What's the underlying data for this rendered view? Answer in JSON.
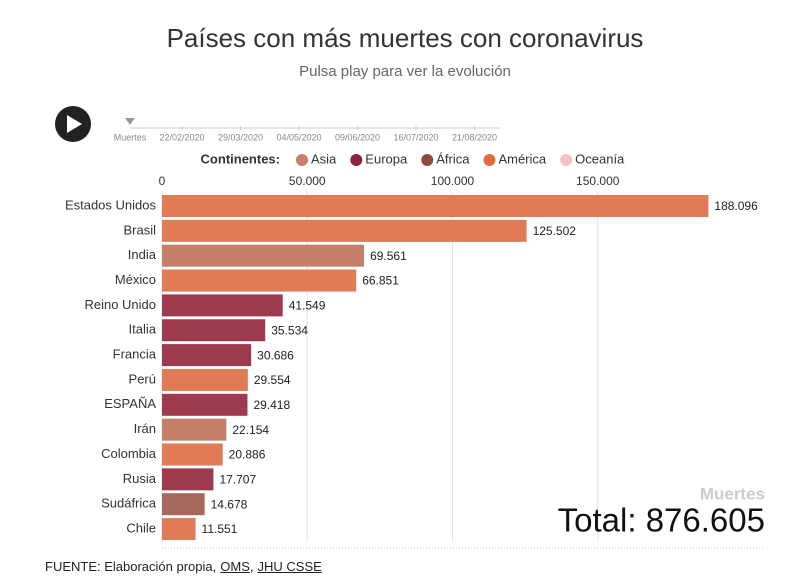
{
  "chart_data": {
    "type": "bar",
    "orientation": "horizontal",
    "title": "Países con más muertes con coronavirus",
    "subtitle": "Pulsa play para ver la evolución",
    "categories": [
      "Estados Unidos",
      "Brasil",
      "India",
      "México",
      "Reino Unido",
      "Italia",
      "Francia",
      "Perú",
      "ESPAÑA",
      "Irán",
      "Colombia",
      "Rusia",
      "Sudáfrica",
      "Chile"
    ],
    "values": [
      188096,
      125502,
      69561,
      66851,
      41549,
      35534,
      30686,
      29554,
      29418,
      22154,
      20886,
      17707,
      14678,
      11551
    ],
    "value_labels": [
      "188.096",
      "125.502",
      "69.561",
      "66.851",
      "41.549",
      "35.534",
      "30.686",
      "29.554",
      "29.418",
      "22.154",
      "20.886",
      "17.707",
      "14.678",
      "11.551"
    ],
    "colors": [
      "#e07b57",
      "#e07b57",
      "#c4806a",
      "#e07b57",
      "#9d3a4d",
      "#9d3a4d",
      "#9d3a4d",
      "#e07b57",
      "#9d3a4d",
      "#c4806a",
      "#e07b57",
      "#9d3a4d",
      "#a6675d",
      "#e07b57"
    ],
    "xlim": [
      0,
      200000
    ],
    "xticks": [
      0,
      {
        "value": 50000,
        "label": "50.000"
      },
      {
        "value": 100000,
        "label": "100.000"
      },
      {
        "value": 150000,
        "label": "150.000"
      }
    ],
    "grid": true,
    "legend": {
      "title": "Continentes:",
      "position": "top",
      "items": [
        {
          "name": "Asia",
          "color": "#c4806a"
        },
        {
          "name": "Europa",
          "color": "#8e2437"
        },
        {
          "name": "África",
          "color": "#8f4a44"
        },
        {
          "name": "América",
          "color": "#e06b3e"
        },
        {
          "name": "Oceanía",
          "color": "#f5c0c0"
        }
      ]
    },
    "total": {
      "label": "Muertes",
      "text": "Total: 876.605"
    }
  },
  "timeline": {
    "label": "Muertes",
    "dates": [
      "22/02/2020",
      "29/03/2020",
      "04/05/2020",
      "09/06/2020",
      "16/07/2020",
      "21/08/2020"
    ]
  },
  "source": {
    "parts": [
      "FUENTE: Elaboración propia,",
      "OMS",
      ",",
      "JHU CSSE"
    ]
  }
}
